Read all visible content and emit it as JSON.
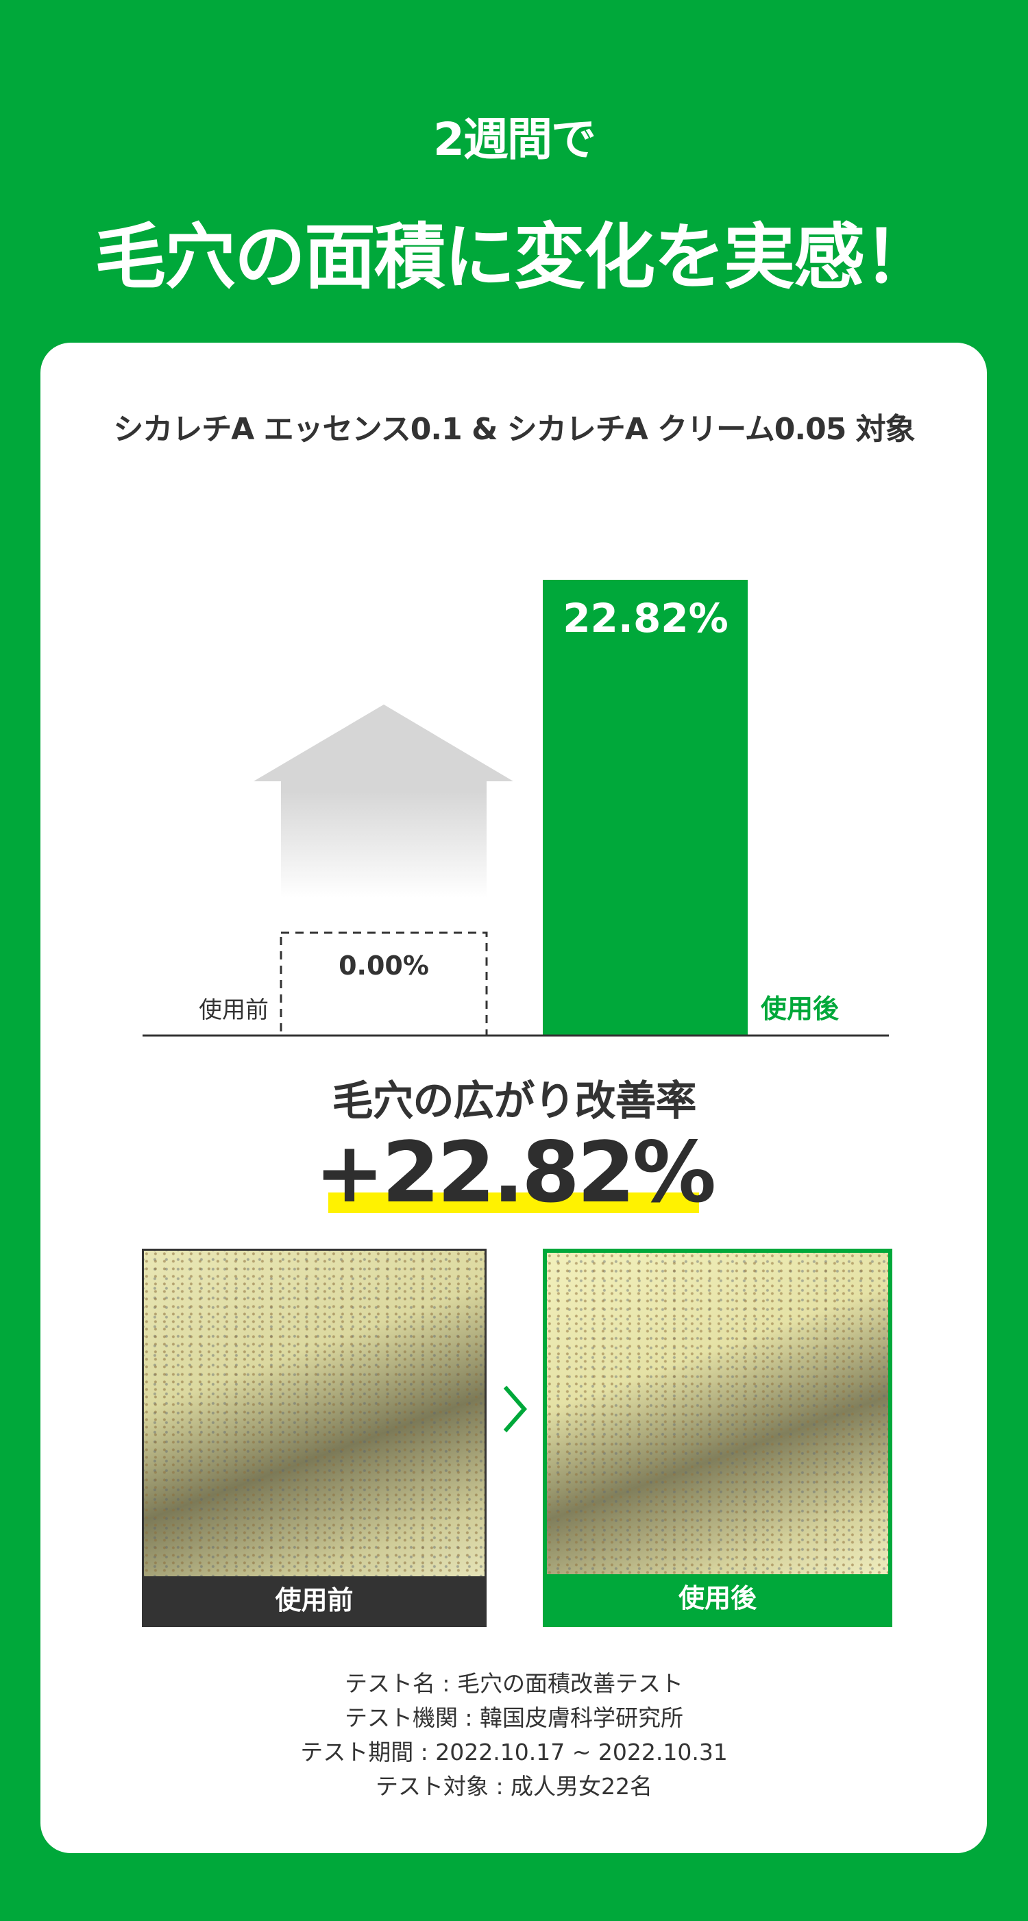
{
  "header": {
    "lead": "2週間で",
    "headline": "毛穴の面積に変化を実感！"
  },
  "card": {
    "subtitle": "シカレチA エッセンス0.1 & シカレチA クリーム0.05 対象",
    "chart_data": {
      "type": "bar",
      "categories": [
        "使用前",
        "使用後"
      ],
      "values": [
        0.0,
        22.82
      ],
      "data_labels": [
        "0.00%",
        "22.82%"
      ],
      "colors": {
        "before": "#ffffff",
        "after": "#00a83a"
      },
      "grid": false
    },
    "metric_label": "毛穴の広がり改善率",
    "metric_value": "+22.82%",
    "photos": {
      "before_caption": "使用前",
      "after_caption": "使用後"
    },
    "footer": [
      "テスト名 : 毛穴の面積改善テスト",
      "テスト機関 : 韓国皮膚科学研究所",
      "テスト期間 : 2022.10.17 ~ 2022.10.31",
      "テスト対象 : 成人男女22名"
    ]
  },
  "colors": {
    "brand_green": "#00a83a",
    "highlight_yellow": "#fff200",
    "text_dark": "#333333"
  }
}
